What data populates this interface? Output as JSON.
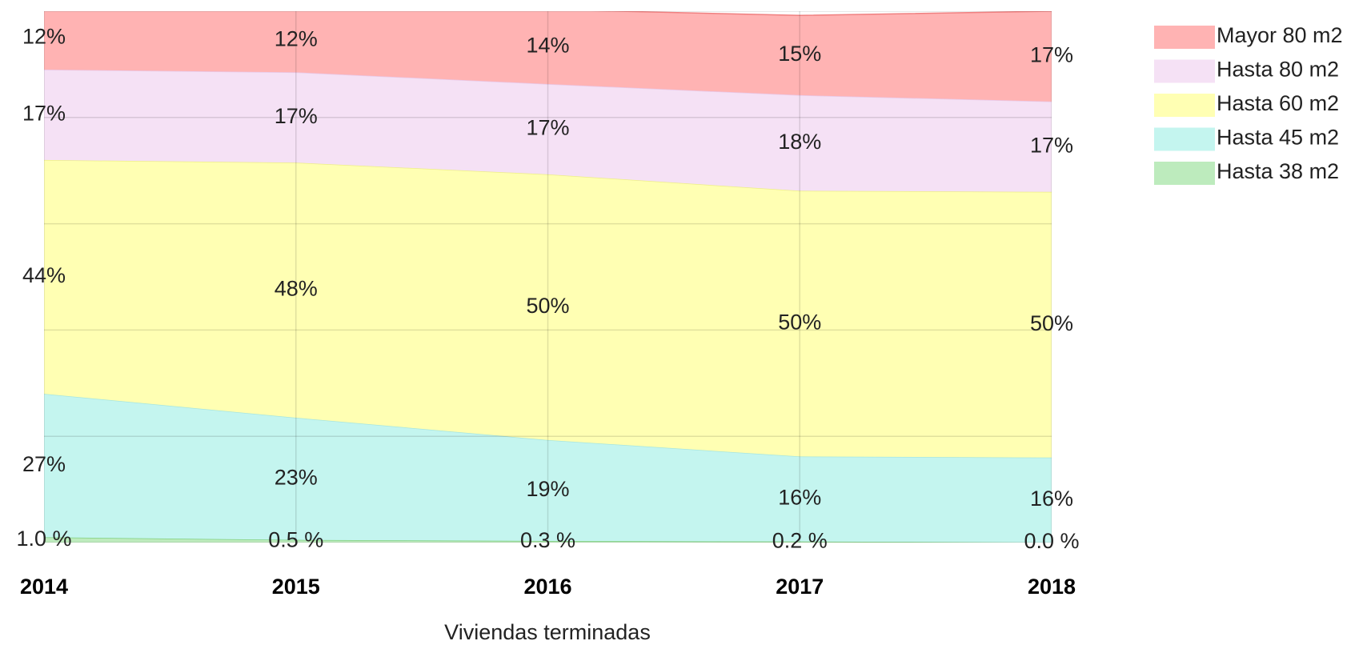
{
  "chart_data": {
    "type": "stacked_area",
    "x_label": "Viviendas terminadas",
    "categories": [
      "2014",
      "2015",
      "2016",
      "2017",
      "2018"
    ],
    "ylim": [
      0,
      100
    ],
    "yticks": [
      0,
      20,
      40,
      60,
      80,
      100
    ],
    "grid": true,
    "legend": "right",
    "series": [
      {
        "name": "Mayor 80 m2",
        "color": "#ffb3b3",
        "line": "#f08080",
        "values": [
          12,
          12,
          14,
          15,
          17
        ],
        "value_labels": [
          "12%",
          "12%",
          "14%",
          "15%",
          "17%"
        ]
      },
      {
        "name": "Hasta 80 m2",
        "color": "#f5e1f5",
        "line": "#e8c8e8",
        "values": [
          17,
          17,
          17,
          18,
          17
        ],
        "value_labels": [
          "17%",
          "17%",
          "17%",
          "18%",
          "17%"
        ]
      },
      {
        "name": "Hasta 60 m2",
        "color": "#ffffb3",
        "line": "#eeee88",
        "values": [
          44,
          48,
          50,
          50,
          50
        ],
        "value_labels": [
          "44%",
          "48%",
          "50%",
          "50%",
          "50%"
        ]
      },
      {
        "name": "Hasta 45 m2",
        "color": "#c4f5ef",
        "line": "#a8e6de",
        "values": [
          27,
          23,
          19,
          16,
          16
        ],
        "value_labels": [
          "27%",
          "23%",
          "19%",
          "16%",
          "16%"
        ]
      },
      {
        "name": "Hasta 38 m2",
        "color": "#bdebbd",
        "line": "#80d080",
        "values": [
          1.0,
          0.5,
          0.3,
          0.2,
          0.0
        ],
        "value_labels": [
          "1.0 %",
          "0.5 %",
          "0.3 %",
          "0.2 %",
          "0.0 %"
        ]
      }
    ]
  }
}
